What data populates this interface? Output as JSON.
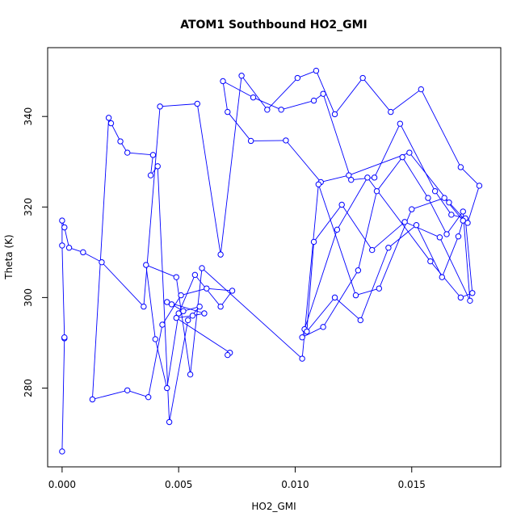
{
  "chart_data": {
    "type": "scatter",
    "title": "ATOM1 Southbound HO2_GMI",
    "xlabel": "HO2_GMI",
    "ylabel": "Theta (K)",
    "xlim": [
      -0.00062,
      0.01882
    ],
    "ylim": [
      262.6,
      355.2
    ],
    "x_ticks": [
      0.0,
      0.005,
      0.01,
      0.015
    ],
    "x_tick_labels": [
      "0.000",
      "0.005",
      "0.010",
      "0.015"
    ],
    "y_ticks": [
      280,
      300,
      320,
      340
    ],
    "y_tick_labels": [
      "280",
      "300",
      "320",
      "340"
    ],
    "grid": false,
    "legend": "none",
    "series_color": "#0000ff",
    "connected": true,
    "x": [
      0.0,
      0.0001,
      0.0001,
      0.0,
      0.0,
      0.0001,
      0.0003,
      0.0009,
      0.0017,
      0.0035,
      0.0042,
      0.0058,
      0.0068,
      0.0077,
      0.0088,
      0.0101,
      0.0109,
      0.0117,
      0.0129,
      0.0141,
      0.0154,
      0.0171,
      0.0179,
      0.0174,
      0.0166,
      0.0149,
      0.0123,
      0.0111,
      0.0096,
      0.0081,
      0.0071,
      0.0069,
      0.0082,
      0.0094,
      0.0108,
      0.0112,
      0.0124,
      0.0134,
      0.0145,
      0.016,
      0.0167,
      0.0173,
      0.0176,
      0.0171,
      0.0158,
      0.0131,
      0.0118,
      0.0104,
      0.0103,
      0.0112,
      0.0127,
      0.0135,
      0.0146,
      0.0157,
      0.0165,
      0.0172,
      0.0175,
      0.0162,
      0.0147,
      0.0133,
      0.012,
      0.0108,
      0.0105,
      0.0117,
      0.0128,
      0.014,
      0.0152,
      0.0163,
      0.017,
      0.0172,
      0.0164,
      0.015,
      0.0136,
      0.0126,
      0.011,
      0.0103,
      0.006,
      0.0055,
      0.0049,
      0.0036,
      0.004,
      0.0045,
      0.005,
      0.0057,
      0.0068,
      0.0073,
      0.0062,
      0.0051,
      0.0043,
      0.0037,
      0.0028,
      0.0013,
      0.002,
      0.0021,
      0.0025,
      0.0028,
      0.0039,
      0.0038,
      0.0041,
      0.0046,
      0.0054,
      0.0059,
      0.0052,
      0.0047,
      0.0045,
      0.0061,
      0.0056,
      0.0049,
      0.0072,
      0.0071
    ],
    "y": [
      266.0,
      291.0,
      291.2,
      311.5,
      317.0,
      315.5,
      311.0,
      310.0,
      307.8,
      298.0,
      342.2,
      342.8,
      309.5,
      349.0,
      341.5,
      348.5,
      350.1,
      340.5,
      348.5,
      341.0,
      346.0,
      328.8,
      324.7,
      316.5,
      321.0,
      332.0,
      327.0,
      325.5,
      334.7,
      334.6,
      341.0,
      347.8,
      344.2,
      341.5,
      343.5,
      345.0,
      326.0,
      326.5,
      338.4,
      323.5,
      318.3,
      317.5,
      301.0,
      300.0,
      308.0,
      326.5,
      315.0,
      293.0,
      291.2,
      293.5,
      306.0,
      323.5,
      331.0,
      322.0,
      314.0,
      319.0,
      299.3,
      313.3,
      316.7,
      310.5,
      320.5,
      312.3,
      292.5,
      300.0,
      295.0,
      311.0,
      316.0,
      304.5,
      313.5,
      317.0,
      322.0,
      319.5,
      302.0,
      300.5,
      325.0,
      286.5,
      306.5,
      283.0,
      304.5,
      307.2,
      290.8,
      280.0,
      296.5,
      305.0,
      298.0,
      301.5,
      302.0,
      300.5,
      294.0,
      278.0,
      279.5,
      277.5,
      339.7,
      338.5,
      334.5,
      332.0,
      331.5,
      327.0,
      329.0,
      272.5,
      295.0,
      298.0,
      297.0,
      298.5,
      299.0,
      296.5,
      296.0,
      295.5,
      287.8,
      287.3
    ]
  }
}
